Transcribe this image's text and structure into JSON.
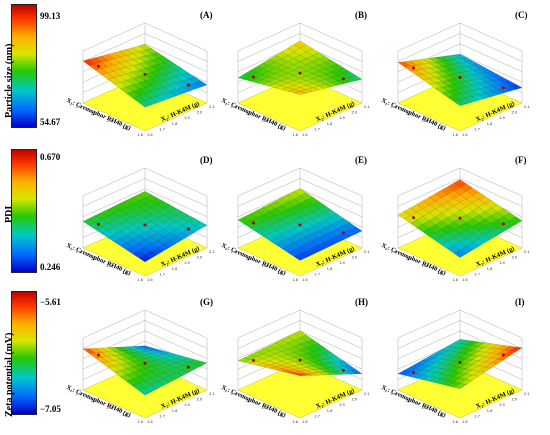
{
  "rows": [
    {
      "ylabel": "Particle size (nm)",
      "max": "99.13",
      "min": "54.67"
    },
    {
      "ylabel": "PDI",
      "max": "0.670",
      "min": "0.246"
    },
    {
      "ylabel": "Zeta potential (mV)",
      "max": "−5.61",
      "min": "−7.05"
    }
  ],
  "axis": {
    "x1": "X₁: Cremophor RH40 (g)",
    "x2": "X₂: H-K4M (g)"
  },
  "panels": [
    "(A)",
    "(B)",
    "(C)",
    "(D)",
    "(E)",
    "(F)",
    "(G)",
    "(H)",
    "(I)"
  ],
  "ticks": {
    "x1": [
      "1.6",
      "1.8",
      "2.0",
      "2.2",
      "2.4"
    ],
    "x2": [
      "1.6",
      "1.7",
      "1.8",
      "1.9",
      "2.0",
      "2.1"
    ]
  },
  "colors": {
    "floor": "#ffff33",
    "high": "#c00000",
    "low": "#0000c8"
  },
  "chart_data": [
    {
      "type": "surface",
      "panel": "(A)",
      "response": "Particle size (nm)",
      "range": [
        54.67,
        99.13
      ],
      "corners": {
        "x1_low_x2_low": 80,
        "x1_low_x2_high": 62,
        "x1_high_x2_low": 96,
        "x1_high_x2_high": 70
      }
    },
    {
      "type": "surface",
      "panel": "(B)",
      "response": "Particle size (nm)",
      "range": [
        54.67,
        99.13
      ],
      "corners": {
        "x1_low_x2_low": 85,
        "x1_low_x2_high": 70,
        "x1_high_x2_low": 72,
        "x1_high_x2_high": 88
      }
    },
    {
      "type": "surface",
      "panel": "(C)",
      "response": "Particle size (nm)",
      "range": [
        54.67,
        99.13
      ],
      "corners": {
        "x1_low_x2_low": 66,
        "x1_low_x2_high": 58,
        "x1_high_x2_low": 94,
        "x1_high_x2_high": 72
      }
    },
    {
      "type": "surface",
      "panel": "(D)",
      "response": "PDI",
      "range": [
        0.246,
        0.67
      ],
      "corners": {
        "x1_low_x2_low": 0.46,
        "x1_low_x2_high": 0.38,
        "x1_high_x2_low": 0.43,
        "x1_high_x2_high": 0.26
      }
    },
    {
      "type": "surface",
      "panel": "(E)",
      "response": "PDI",
      "range": [
        0.246,
        0.67
      ],
      "corners": {
        "x1_low_x2_low": 0.5,
        "x1_low_x2_high": 0.3,
        "x1_high_x2_low": 0.45,
        "x1_high_x2_high": 0.28
      }
    },
    {
      "type": "surface",
      "panel": "(F)",
      "response": "PDI",
      "range": [
        0.246,
        0.67
      ],
      "corners": {
        "x1_low_x2_low": 0.62,
        "x1_low_x2_high": 0.44,
        "x1_high_x2_low": 0.52,
        "x1_high_x2_high": 0.32
      }
    },
    {
      "type": "surface",
      "panel": "(G)",
      "response": "Zeta potential (mV)",
      "range": [
        -7.05,
        -5.61
      ],
      "corners": {
        "x1_low_x2_low": -6.9,
        "x1_low_x2_high": -6.4,
        "x1_high_x2_low": -5.75,
        "x1_high_x2_high": -6.6
      }
    },
    {
      "type": "surface",
      "panel": "(H)",
      "response": "Zeta potential (mV)",
      "range": [
        -7.05,
        -5.61
      ],
      "corners": {
        "x1_low_x2_low": -6.2,
        "x1_low_x2_high": -6.9,
        "x1_high_x2_low": -6.3,
        "x1_high_x2_high": -5.7
      }
    },
    {
      "type": "surface",
      "panel": "(I)",
      "response": "Zeta potential (mV)",
      "range": [
        -7.05,
        -5.61
      ],
      "corners": {
        "x1_low_x2_low": -6.6,
        "x1_low_x2_high": -5.7,
        "x1_high_x2_low": -6.9,
        "x1_high_x2_high": -6.3
      }
    }
  ]
}
